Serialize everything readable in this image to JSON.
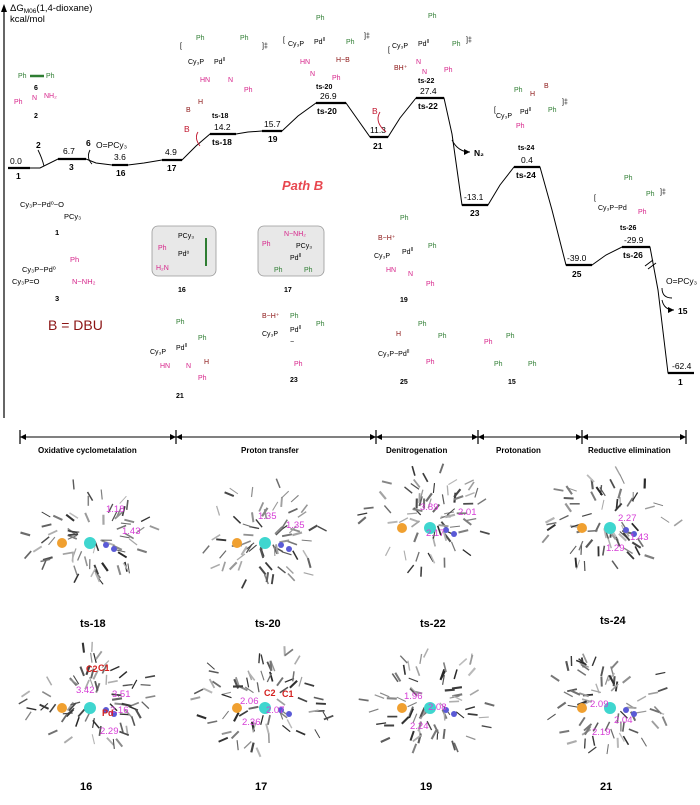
{
  "axis": {
    "line1": "ΔG",
    "sub": "M06",
    "suffix": "(1,4-dioxane)",
    "line2": "kcal/mol"
  },
  "path_label": "Path B",
  "base_label": "B = DBU",
  "reagent_labels": {
    "r6": "6",
    "r2": "2",
    "r15": "15",
    "n2": "N₂",
    "opcy3": "O=PCy₃",
    "b": "B",
    "num6": "6",
    "num2": "2"
  },
  "levels": [
    {
      "id": "1",
      "label": "1",
      "value": "0.0"
    },
    {
      "id": "3",
      "label": "3",
      "value": "6.7"
    },
    {
      "id": "16",
      "label": "16",
      "value": "3.6"
    },
    {
      "id": "17",
      "label": "17",
      "value": "4.9"
    },
    {
      "id": "ts18",
      "label": "ts-18",
      "value": "14.2"
    },
    {
      "id": "19",
      "label": "19",
      "value": "15.7"
    },
    {
      "id": "ts20",
      "label": "ts-20",
      "value": "26.9"
    },
    {
      "id": "21",
      "label": "21",
      "value": "11.3"
    },
    {
      "id": "ts22",
      "label": "ts-22",
      "value": "27.4"
    },
    {
      "id": "23",
      "label": "23",
      "value": "-13.1"
    },
    {
      "id": "ts24",
      "label": "ts-24",
      "value": "0.4"
    },
    {
      "id": "25",
      "label": "25",
      "value": "-39.0"
    },
    {
      "id": "ts26",
      "label": "ts-26",
      "value": "-29.9"
    },
    {
      "id": "1b",
      "label": "1",
      "value": "-62.4"
    }
  ],
  "stages": [
    {
      "label": "Oxidative cyclometalation"
    },
    {
      "label": "Proton transfer"
    },
    {
      "label": "Denitrogenation"
    },
    {
      "label": "Protonation"
    },
    {
      "label": "Reductive elimination"
    }
  ],
  "structure_labels": {
    "s1": "1",
    "s3": "3",
    "s16": "16",
    "s17": "17",
    "s19": "19",
    "s21": "21",
    "s23": "23",
    "s25": "25",
    "s15": "15",
    "ts18": "ts-18",
    "ts20": "ts-20",
    "ts22": "ts-22",
    "ts24": "ts-24",
    "ts26": "ts-26"
  },
  "geometries": [
    {
      "label": "ts-18",
      "distances": [
        "1.18",
        "1.43"
      ]
    },
    {
      "label": "ts-20",
      "distances": [
        "1.35",
        "1.35"
      ]
    },
    {
      "label": "ts-22",
      "distances": [
        "3.89",
        "2.01",
        "2.17"
      ]
    },
    {
      "label": "ts-24",
      "distances": [
        "2.27",
        "1.29",
        "1.43"
      ]
    },
    {
      "label": "16",
      "distances": [
        "3.42",
        "3.51",
        "2.16",
        "2.29"
      ],
      "atoms": [
        "C2",
        "C1",
        "Pd"
      ]
    },
    {
      "label": "17",
      "distances": [
        "2.06",
        "2.07",
        "2.36"
      ],
      "atoms": [
        "C2",
        "C1"
      ]
    },
    {
      "label": "19",
      "distances": [
        "1.96",
        "2.08",
        "2.24"
      ]
    },
    {
      "label": "21",
      "distances": [
        "2.09",
        "2.04",
        "2.19"
      ]
    }
  ],
  "colors": {
    "pink": "#d6248a",
    "green": "#2e7d32",
    "red": "#c0142c",
    "pd": "#3fd6cf",
    "p": "#f0a030",
    "n": "#5a5ad6"
  }
}
